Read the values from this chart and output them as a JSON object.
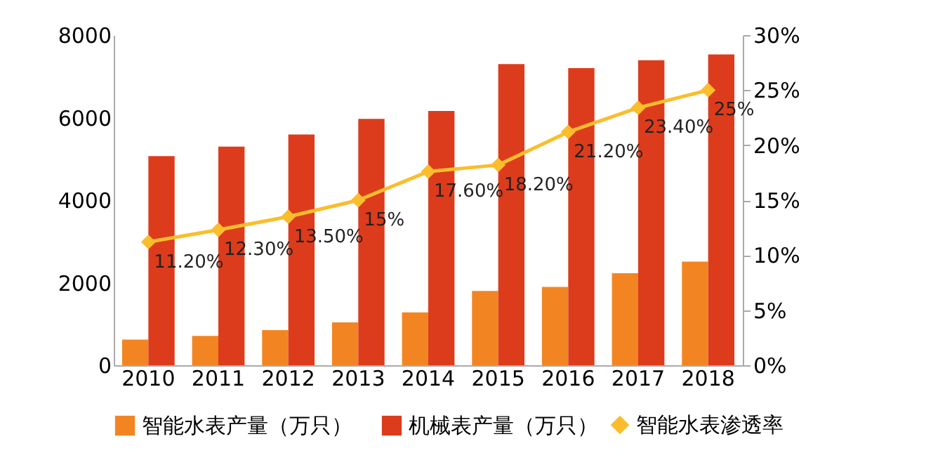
{
  "chart_data": {
    "type": "bar",
    "categories": [
      "2010",
      "2011",
      "2012",
      "2013",
      "2014",
      "2015",
      "2016",
      "2017",
      "2018"
    ],
    "series": [
      {
        "name": "智能水表产量（万只）",
        "color": "#f28522",
        "values": [
          620,
          710,
          850,
          1040,
          1280,
          1800,
          1900,
          2230,
          2510
        ]
      },
      {
        "name": "机械表产量（万只）",
        "color": "#dc3c1c",
        "values": [
          5070,
          5300,
          5590,
          5970,
          6160,
          7300,
          7200,
          7390,
          7530
        ]
      },
      {
        "name": "智能水表渗透率",
        "type": "line",
        "axis": "y2",
        "color": "#fbbd2c",
        "marker": "diamond",
        "values": [
          11.2,
          12.3,
          13.5,
          15,
          17.6,
          18.2,
          21.2,
          23.4,
          25
        ],
        "value_labels": [
          "11.20%",
          "12.30%",
          "13.50%",
          "15%",
          "17.60%",
          "18.20%",
          "21.20%",
          "23.40%",
          "25%"
        ]
      }
    ],
    "ylim": [
      0,
      8000
    ],
    "yticks": [
      0,
      2000,
      4000,
      6000,
      8000
    ],
    "y2lim": [
      0,
      30
    ],
    "y2ticks": [
      {
        "value": 0,
        "label": "0%"
      },
      {
        "value": 5,
        "label": "5%"
      },
      {
        "value": 10,
        "label": "10%"
      },
      {
        "value": 15,
        "label": "15%"
      },
      {
        "value": 20,
        "label": "20%"
      },
      {
        "value": 25,
        "label": "25%"
      },
      {
        "value": 30,
        "label": "30%"
      }
    ],
    "grid": false,
    "legend": "bottom"
  }
}
